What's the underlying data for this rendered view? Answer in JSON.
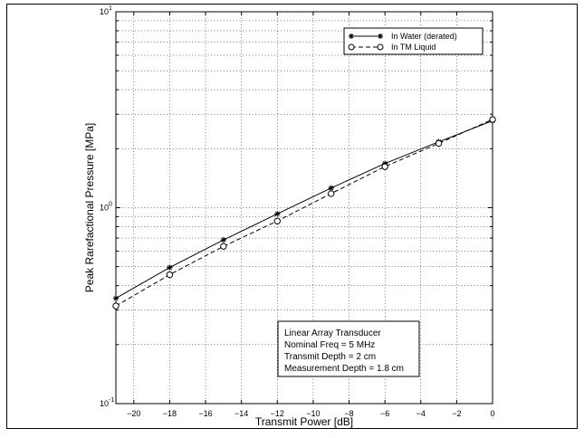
{
  "chart_data": {
    "type": "line",
    "title": "",
    "xlabel": "Transmit Power [dB]",
    "ylabel": "Peak Rarefactional Pressure [MPa]",
    "xlim": [
      -21,
      0
    ],
    "ylim": [
      0.1,
      10
    ],
    "yscale": "log",
    "grid": true,
    "x_ticks": [
      -20,
      -18,
      -16,
      -14,
      -12,
      -10,
      -8,
      -6,
      -4,
      -2,
      0
    ],
    "y_ticks": [
      {
        "base": "10",
        "exp": "-1",
        "value": 0.1
      },
      {
        "base": "10",
        "exp": "0",
        "value": 1
      },
      {
        "base": "10",
        "exp": "1",
        "value": 10
      }
    ],
    "x": [
      -21,
      -18,
      -15,
      -12,
      -9,
      -6,
      -3,
      0
    ],
    "series": [
      {
        "name": "In Water (derated)",
        "marker": "asterisk",
        "line": "solid",
        "color": "#000000",
        "values": [
          0.345,
          0.495,
          0.685,
          0.93,
          1.26,
          1.68,
          2.17,
          2.78
        ]
      },
      {
        "name": "In TM Liquid",
        "marker": "circle",
        "line": "dashed",
        "color": "#000000",
        "values": [
          0.315,
          0.455,
          0.635,
          0.855,
          1.18,
          1.62,
          2.13,
          2.82
        ]
      }
    ],
    "legend_position": "top-right",
    "annotation": {
      "lines": [
        "Linear Array Transducer",
        "Nominal Freq =   5 MHz",
        "Transmit Depth = 2 cm",
        "Measurement Depth = 1.8 cm"
      ],
      "position": "bottom-right"
    }
  }
}
